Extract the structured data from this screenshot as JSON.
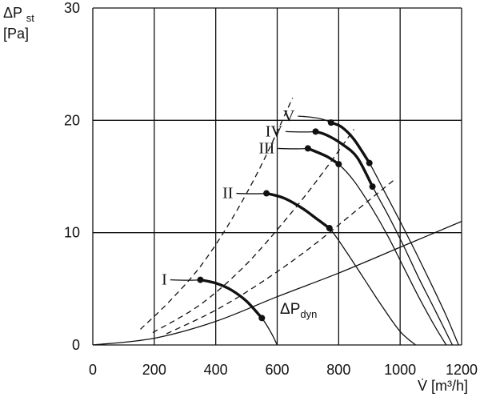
{
  "chart_data": {
    "type": "line",
    "xlabel": "V̇ [m³/h]",
    "ylabel": [
      "ΔPst",
      "[Pa]"
    ],
    "xlim": [
      0,
      1200
    ],
    "ylim": [
      0,
      30
    ],
    "x_ticks": [
      0,
      200,
      400,
      600,
      800,
      1000,
      1200
    ],
    "y_ticks": [
      0,
      10,
      20,
      30
    ],
    "grid": true,
    "series": [
      {
        "name": "I",
        "kind": "fan-curve",
        "x": [
          350,
          400,
          450,
          500,
          550,
          580,
          600
        ],
        "y": [
          5.8,
          5.5,
          4.9,
          3.9,
          2.4,
          1.1,
          0
        ]
      },
      {
        "name": "II",
        "kind": "fan-curve",
        "x": [
          565,
          620,
          680,
          730,
          770,
          820,
          880,
          940,
          1000,
          1050
        ],
        "y": [
          13.5,
          13.1,
          12.2,
          11.2,
          10.4,
          8.5,
          6.0,
          3.5,
          1.2,
          0
        ]
      },
      {
        "name": "III",
        "kind": "fan-curve",
        "x": [
          700,
          760,
          800,
          850,
          910,
          960,
          1010,
          1060,
          1110,
          1150
        ],
        "y": [
          17.5,
          16.8,
          16.1,
          14.6,
          12.1,
          9.7,
          7.0,
          4.3,
          1.8,
          0
        ]
      },
      {
        "name": "IV",
        "kind": "fan-curve",
        "x": [
          725,
          760,
          810,
          860,
          910,
          960,
          1010,
          1060,
          1110,
          1170
        ],
        "y": [
          19.0,
          18.7,
          17.9,
          16.7,
          14.1,
          11.6,
          8.9,
          6.0,
          3.3,
          0
        ]
      },
      {
        "name": "V",
        "kind": "fan-curve",
        "x": [
          775,
          810,
          850,
          900,
          950,
          1000,
          1050,
          1100,
          1150,
          1190
        ],
        "y": [
          19.8,
          19.4,
          18.3,
          16.2,
          13.6,
          11.0,
          8.3,
          5.5,
          2.6,
          0
        ]
      },
      {
        "name": "ΔPdyn",
        "kind": "system-curve",
        "x": [
          0,
          200,
          400,
          600,
          800,
          1000,
          1200
        ],
        "y": [
          0,
          0.6,
          2.1,
          4.3,
          6.4,
          8.7,
          11.0
        ]
      },
      {
        "kind": "dashed",
        "x": [
          155,
          250,
          350,
          450,
          550,
          650
        ],
        "y": [
          1.4,
          3.9,
          7.0,
          11.1,
          16.1,
          22.0
        ]
      },
      {
        "kind": "dashed",
        "x": [
          195,
          350,
          500,
          650,
          750,
          850
        ],
        "y": [
          1.1,
          3.6,
          7.2,
          11.9,
          15.4,
          19.2
        ]
      },
      {
        "kind": "dashed",
        "x": [
          240,
          400,
          550,
          700,
          850,
          985
        ],
        "y": [
          1.0,
          3.1,
          5.6,
          8.5,
          11.8,
          14.8
        ]
      }
    ],
    "thick_segments": [
      {
        "series": "I",
        "from": 350,
        "to": 550
      },
      {
        "series": "II",
        "from": 565,
        "to": 770
      },
      {
        "series": "III",
        "from": 700,
        "to": 800
      },
      {
        "series": "IV",
        "from": 725,
        "to": 910
      },
      {
        "series": "V",
        "from": 775,
        "to": 900
      }
    ],
    "points": [
      {
        "series": "I",
        "x": 350,
        "y": 5.8
      },
      {
        "series": "I",
        "x": 550,
        "y": 2.4
      },
      {
        "series": "II",
        "x": 565,
        "y": 13.5
      },
      {
        "series": "II",
        "x": 770,
        "y": 10.4
      },
      {
        "series": "III",
        "x": 700,
        "y": 17.5
      },
      {
        "series": "III",
        "x": 800,
        "y": 16.1
      },
      {
        "series": "IV",
        "x": 725,
        "y": 19.0
      },
      {
        "series": "IV",
        "x": 910,
        "y": 14.1
      },
      {
        "series": "V",
        "x": 775,
        "y": 19.8
      },
      {
        "series": "V",
        "x": 900,
        "y": 16.2
      }
    ],
    "curve_labels": [
      {
        "text": "I",
        "series": "I"
      },
      {
        "text": "II",
        "series": "II"
      },
      {
        "text": "III",
        "series": "III"
      },
      {
        "text": "IV",
        "series": "IV"
      },
      {
        "text": "V",
        "series": "V"
      }
    ],
    "dyn_label": {
      "main": "ΔP",
      "sub": "dyn"
    }
  },
  "colors": {
    "line": "#111111",
    "grid": "#111111",
    "background": "#ffffff"
  }
}
